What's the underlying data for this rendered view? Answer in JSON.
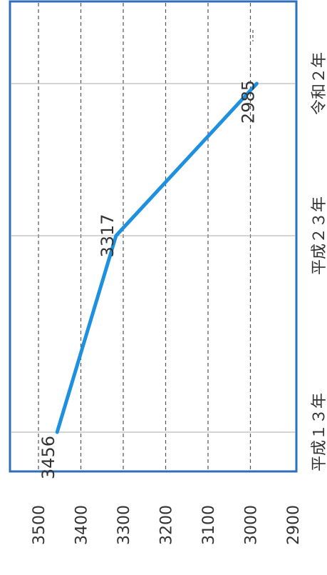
{
  "chart_data": {
    "type": "line",
    "categories": [
      "平成１３年",
      "平成２３年",
      "令和２年"
    ],
    "series": [
      {
        "values": [
          3456,
          3317,
          2985
        ]
      }
    ],
    "data_labels": [
      "3456",
      "3317",
      "2985"
    ],
    "ylim": [
      2900,
      3500
    ],
    "yticks": [
      "3500",
      "3400",
      "3300",
      "3200",
      "3100",
      "3000",
      "2900"
    ],
    "grid": true,
    "orientation": "rotated-90-clockwise",
    "colors": {
      "line": "#1e90e0",
      "frame": "#2f6fb8",
      "grid": "#555555"
    }
  }
}
